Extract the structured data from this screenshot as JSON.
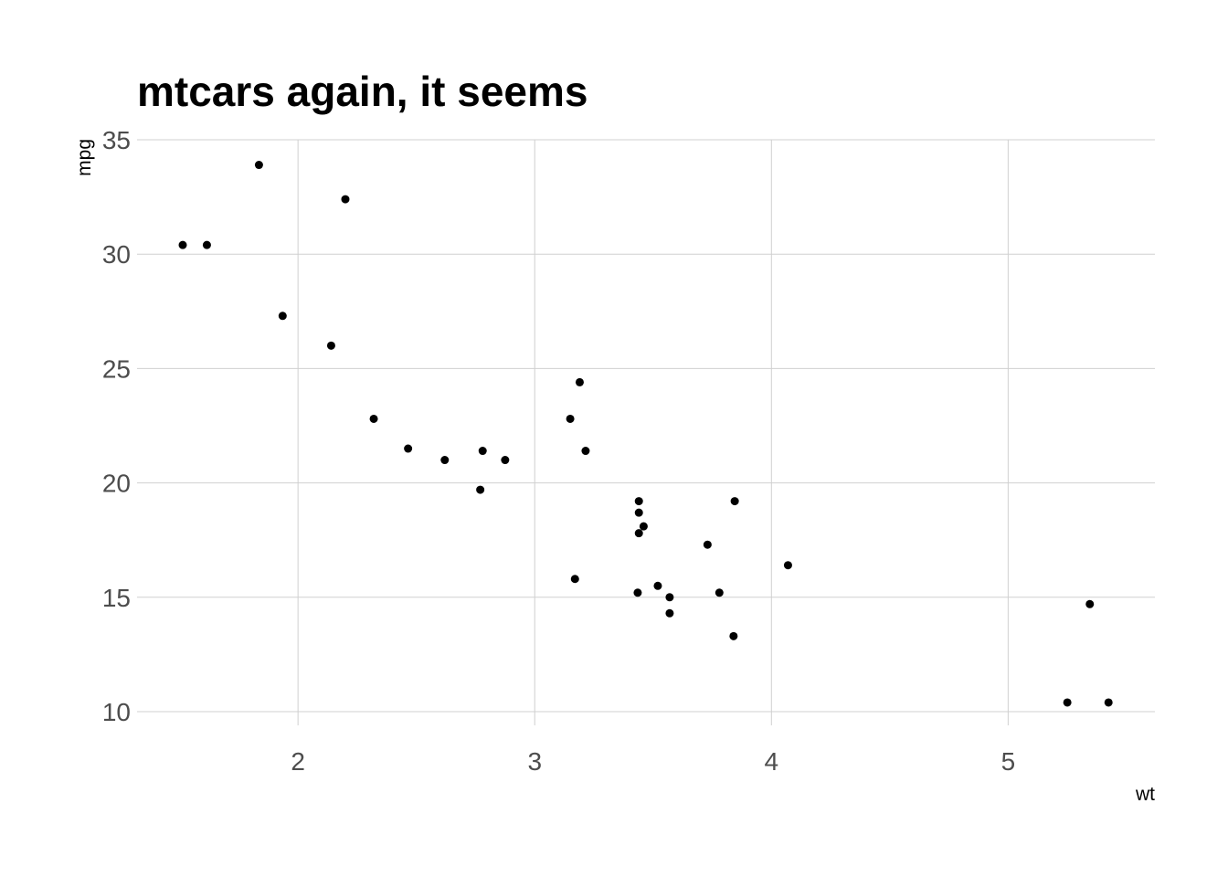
{
  "chart_data": {
    "type": "scatter",
    "title": "mtcars again, it seems",
    "xlabel": "wt",
    "ylabel": "mpg",
    "xlim": [
      1.32,
      5.62
    ],
    "ylim": [
      9.4,
      35.0
    ],
    "xticks": [
      2,
      3,
      4,
      5
    ],
    "yticks": [
      10,
      15,
      20,
      25,
      30,
      35
    ],
    "grid": true,
    "point_color": "#000000",
    "points": [
      {
        "x": 2.62,
        "y": 21.0
      },
      {
        "x": 2.875,
        "y": 21.0
      },
      {
        "x": 2.32,
        "y": 22.8
      },
      {
        "x": 3.215,
        "y": 21.4
      },
      {
        "x": 3.44,
        "y": 18.7
      },
      {
        "x": 3.46,
        "y": 18.1
      },
      {
        "x": 3.57,
        "y": 14.3
      },
      {
        "x": 3.19,
        "y": 24.4
      },
      {
        "x": 3.15,
        "y": 22.8
      },
      {
        "x": 3.44,
        "y": 19.2
      },
      {
        "x": 3.44,
        "y": 17.8
      },
      {
        "x": 4.07,
        "y": 16.4
      },
      {
        "x": 3.73,
        "y": 17.3
      },
      {
        "x": 3.78,
        "y": 15.2
      },
      {
        "x": 5.25,
        "y": 10.4
      },
      {
        "x": 5.424,
        "y": 10.4
      },
      {
        "x": 5.345,
        "y": 14.7
      },
      {
        "x": 2.2,
        "y": 32.4
      },
      {
        "x": 1.615,
        "y": 30.4
      },
      {
        "x": 1.835,
        "y": 33.9
      },
      {
        "x": 2.465,
        "y": 21.5
      },
      {
        "x": 3.52,
        "y": 15.5
      },
      {
        "x": 3.435,
        "y": 15.2
      },
      {
        "x": 3.84,
        "y": 13.3
      },
      {
        "x": 3.845,
        "y": 19.2
      },
      {
        "x": 1.935,
        "y": 27.3
      },
      {
        "x": 2.14,
        "y": 26.0
      },
      {
        "x": 1.513,
        "y": 30.4
      },
      {
        "x": 3.17,
        "y": 15.8
      },
      {
        "x": 2.77,
        "y": 19.7
      },
      {
        "x": 3.57,
        "y": 15.0
      },
      {
        "x": 2.78,
        "y": 21.4
      }
    ]
  }
}
